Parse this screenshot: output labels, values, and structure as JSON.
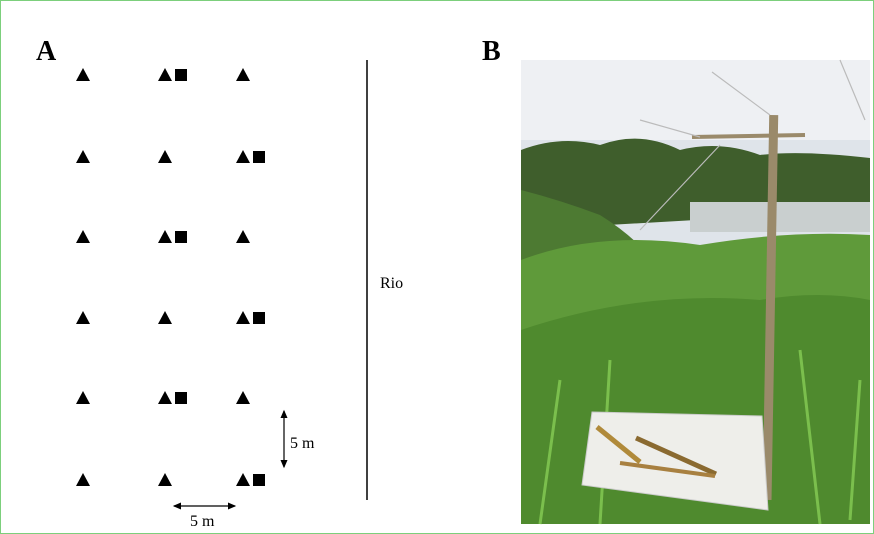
{
  "panels": [
    {
      "label": "A",
      "river_label": "Rio",
      "scale_vertical": "5 m",
      "scale_horizontal": "5 m"
    },
    {
      "label": "B"
    }
  ]
}
